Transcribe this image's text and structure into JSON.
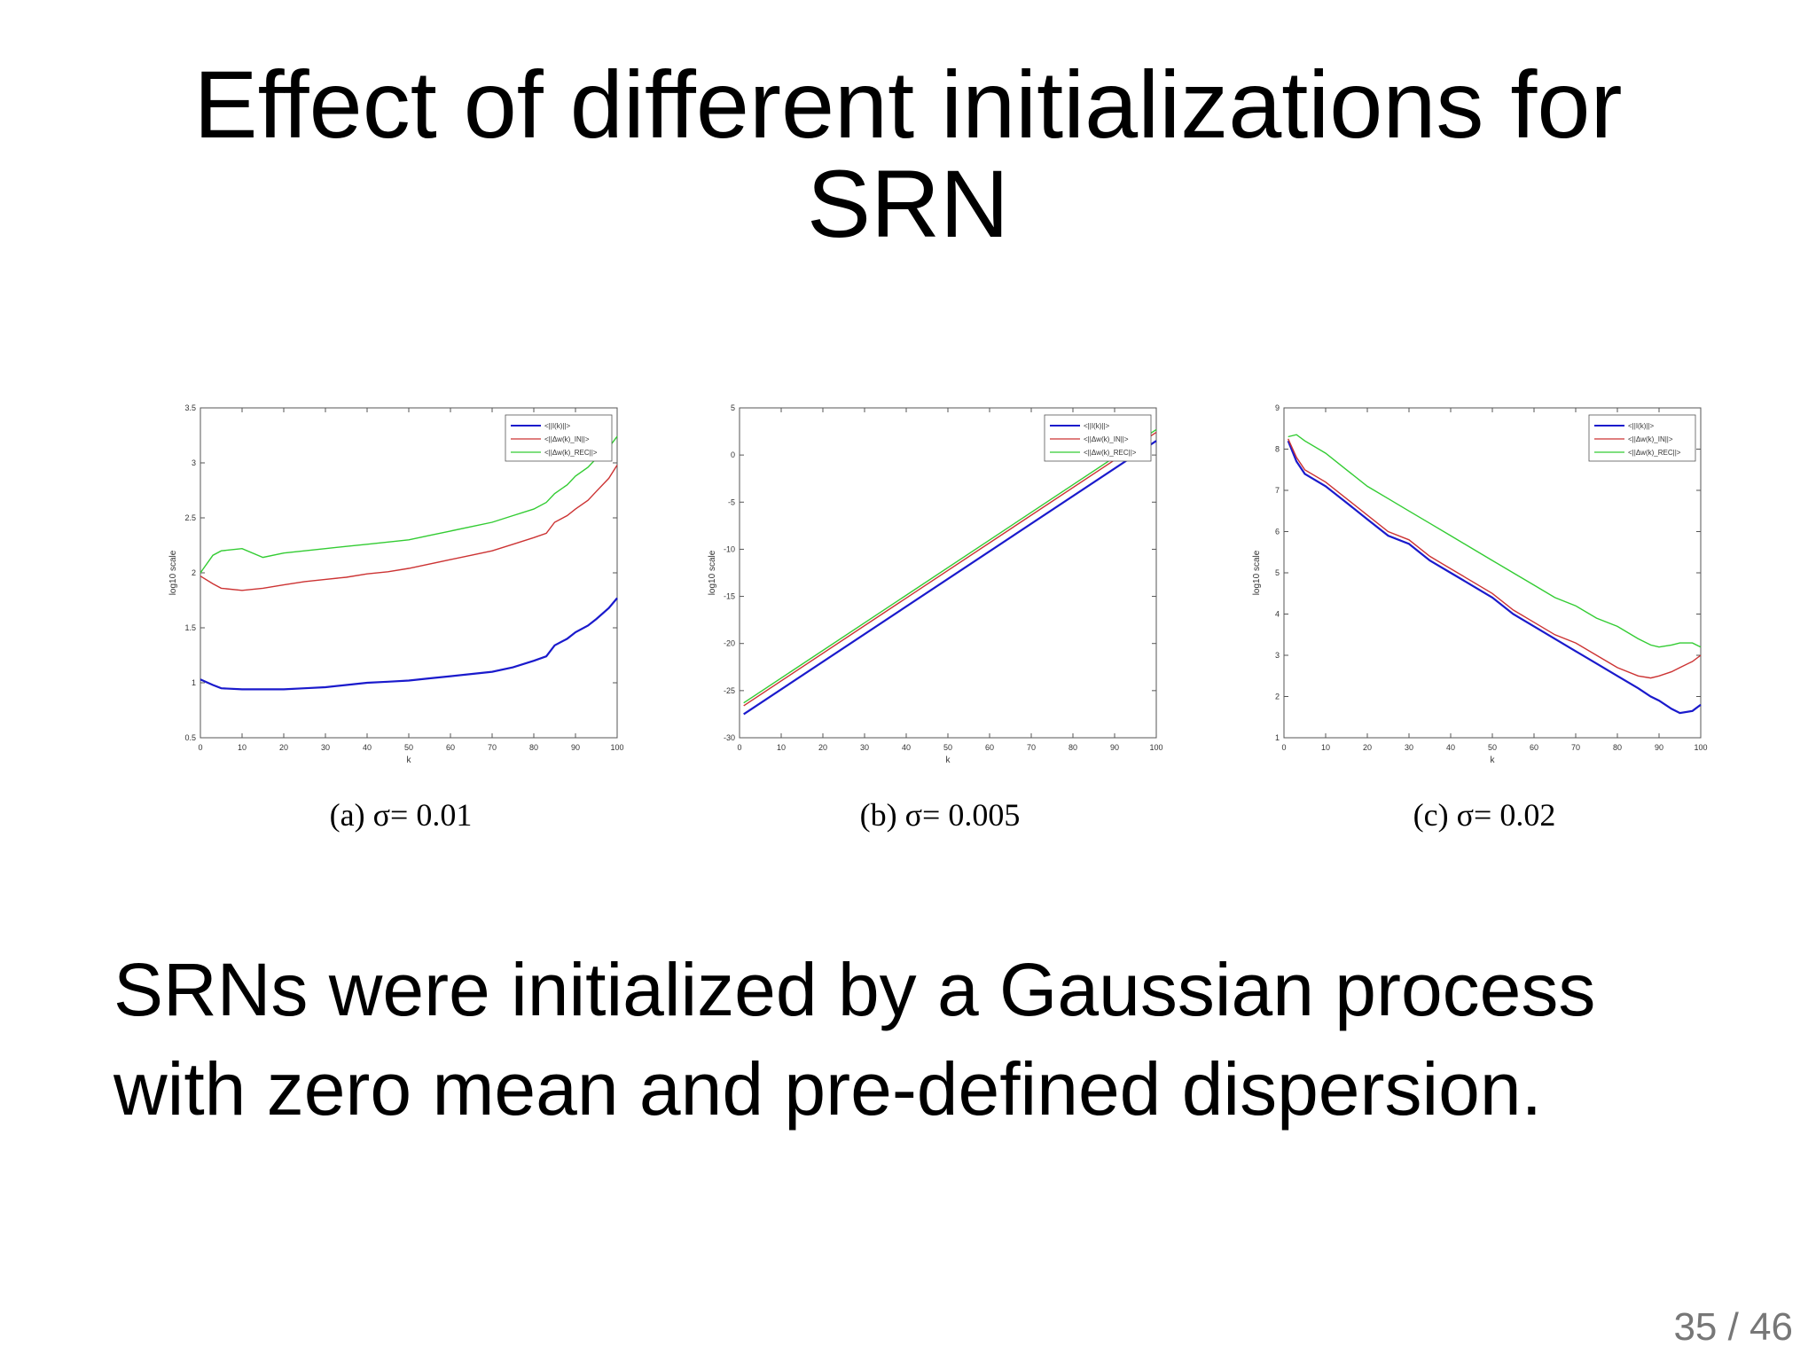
{
  "slide": {
    "title_line1": "Effect of different initializations for",
    "title_line2": "SRN",
    "body_line1": "SRNs were initialized by a Gaussian process",
    "body_line2": "with zero mean and pre-defined dispersion.",
    "page_number": "35 / 46"
  },
  "colors": {
    "blue": "#1a1acc",
    "red": "#cc3333",
    "green": "#33cc33"
  },
  "chart_data": [
    {
      "type": "line",
      "caption": "(a) σ= 0.01",
      "xlabel": "k",
      "ylabel": "log10 scale",
      "xlim": [
        0,
        100
      ],
      "ylim": [
        0.5,
        3.5
      ],
      "xticks": [
        0,
        10,
        20,
        30,
        40,
        50,
        60,
        70,
        80,
        90,
        100
      ],
      "yticks": [
        0.5,
        1,
        1.5,
        2,
        2.5,
        3,
        3.5
      ],
      "ytick_labels": [
        "0.5",
        "1",
        "1.5",
        "2",
        "2.5",
        "3",
        "3.5"
      ],
      "legend_position": "top-right",
      "series": [
        {
          "name": "<||I(k)||>",
          "color": "#1a1acc",
          "x": [
            0,
            3,
            5,
            10,
            15,
            20,
            25,
            30,
            35,
            40,
            45,
            50,
            55,
            60,
            65,
            70,
            75,
            80,
            83,
            85,
            88,
            90,
            93,
            95,
            98,
            100
          ],
          "y": [
            1.03,
            0.98,
            0.95,
            0.94,
            0.94,
            0.94,
            0.95,
            0.96,
            0.98,
            1.0,
            1.01,
            1.02,
            1.04,
            1.06,
            1.08,
            1.1,
            1.14,
            1.2,
            1.24,
            1.34,
            1.4,
            1.46,
            1.52,
            1.58,
            1.68,
            1.77
          ]
        },
        {
          "name": "<||Δw(k)_IN||>",
          "color": "#cc3333",
          "x": [
            0,
            3,
            5,
            10,
            15,
            20,
            25,
            30,
            35,
            40,
            45,
            50,
            55,
            60,
            65,
            70,
            75,
            80,
            83,
            85,
            88,
            90,
            93,
            95,
            98,
            100
          ],
          "y": [
            1.97,
            1.9,
            1.86,
            1.84,
            1.86,
            1.89,
            1.92,
            1.94,
            1.96,
            1.99,
            2.01,
            2.04,
            2.08,
            2.12,
            2.16,
            2.2,
            2.26,
            2.32,
            2.36,
            2.46,
            2.52,
            2.58,
            2.66,
            2.74,
            2.86,
            2.98
          ]
        },
        {
          "name": "<||Δw(k)_REC||>",
          "color": "#33cc33",
          "x": [
            0,
            3,
            5,
            10,
            15,
            20,
            25,
            30,
            35,
            40,
            45,
            50,
            55,
            60,
            65,
            70,
            75,
            80,
            83,
            85,
            88,
            90,
            93,
            95,
            98,
            100
          ],
          "y": [
            2.0,
            2.16,
            2.2,
            2.22,
            2.14,
            2.18,
            2.2,
            2.22,
            2.24,
            2.26,
            2.28,
            2.3,
            2.34,
            2.38,
            2.42,
            2.46,
            2.52,
            2.58,
            2.64,
            2.72,
            2.8,
            2.88,
            2.96,
            3.04,
            3.14,
            3.24
          ]
        }
      ]
    },
    {
      "type": "line",
      "caption": "(b) σ= 0.005",
      "xlabel": "k",
      "ylabel": "log10 scale",
      "xlim": [
        0,
        100
      ],
      "ylim": [
        -30,
        5
      ],
      "xticks": [
        0,
        10,
        20,
        30,
        40,
        50,
        60,
        70,
        80,
        90,
        100
      ],
      "yticks": [
        -30,
        -25,
        -20,
        -15,
        -10,
        -5,
        0,
        5
      ],
      "ytick_labels": [
        "-30",
        "-25",
        "-20",
        "-15",
        "-10",
        "-5",
        "0",
        "5"
      ],
      "legend_position": "top-right",
      "series": [
        {
          "name": "<||I(k)||>",
          "color": "#1a1acc",
          "x": [
            1,
            100
          ],
          "y": [
            -27.5,
            1.5
          ]
        },
        {
          "name": "<||Δw(k)_IN||>",
          "color": "#cc3333",
          "x": [
            1,
            100
          ],
          "y": [
            -26.6,
            2.4
          ]
        },
        {
          "name": "<||Δw(k)_REC||>",
          "color": "#33cc33",
          "x": [
            1,
            100
          ],
          "y": [
            -26.3,
            2.7
          ]
        }
      ]
    },
    {
      "type": "line",
      "caption": "(c) σ= 0.02",
      "xlabel": "k",
      "ylabel": "log10 scale",
      "xlim": [
        0,
        100
      ],
      "ylim": [
        1,
        9
      ],
      "xticks": [
        0,
        10,
        20,
        30,
        40,
        50,
        60,
        70,
        80,
        90,
        100
      ],
      "yticks": [
        1,
        2,
        3,
        4,
        5,
        6,
        7,
        8,
        9
      ],
      "ytick_labels": [
        "1",
        "2",
        "3",
        "4",
        "5",
        "6",
        "7",
        "8",
        "9"
      ],
      "legend_position": "top-right",
      "series": [
        {
          "name": "<||I(k)||>",
          "color": "#1a1acc",
          "x": [
            1,
            3,
            5,
            10,
            15,
            20,
            25,
            30,
            35,
            40,
            45,
            50,
            55,
            60,
            65,
            70,
            75,
            80,
            85,
            88,
            90,
            93,
            95,
            98,
            100
          ],
          "y": [
            8.2,
            7.7,
            7.4,
            7.1,
            6.7,
            6.3,
            5.9,
            5.7,
            5.3,
            5.0,
            4.7,
            4.4,
            4.0,
            3.7,
            3.4,
            3.1,
            2.8,
            2.5,
            2.2,
            2.0,
            1.9,
            1.7,
            1.6,
            1.65,
            1.8
          ]
        },
        {
          "name": "<||Δw(k)_IN||>",
          "color": "#cc3333",
          "x": [
            1,
            3,
            5,
            10,
            15,
            20,
            25,
            30,
            35,
            40,
            45,
            50,
            55,
            60,
            65,
            70,
            75,
            80,
            85,
            88,
            90,
            93,
            95,
            98,
            100
          ],
          "y": [
            8.25,
            7.8,
            7.5,
            7.2,
            6.8,
            6.4,
            6.0,
            5.8,
            5.4,
            5.1,
            4.8,
            4.5,
            4.1,
            3.8,
            3.5,
            3.3,
            3.0,
            2.7,
            2.5,
            2.45,
            2.5,
            2.6,
            2.7,
            2.85,
            3.0
          ]
        },
        {
          "name": "<||Δw(k)_REC||>",
          "color": "#33cc33",
          "x": [
            1,
            3,
            5,
            10,
            15,
            20,
            25,
            30,
            35,
            40,
            45,
            50,
            55,
            60,
            65,
            70,
            75,
            80,
            85,
            88,
            90,
            93,
            95,
            98,
            100
          ],
          "y": [
            8.3,
            8.35,
            8.2,
            7.9,
            7.5,
            7.1,
            6.8,
            6.5,
            6.2,
            5.9,
            5.6,
            5.3,
            5.0,
            4.7,
            4.4,
            4.2,
            3.9,
            3.7,
            3.4,
            3.25,
            3.2,
            3.25,
            3.3,
            3.3,
            3.2
          ]
        }
      ]
    }
  ]
}
